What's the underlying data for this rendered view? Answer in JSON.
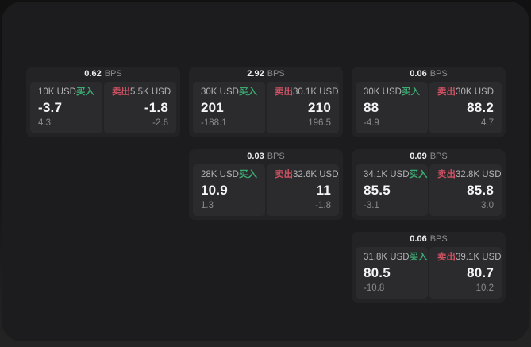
{
  "labels": {
    "bps_unit": "BPS",
    "buy": "买入",
    "sell": "卖出"
  },
  "colors": {
    "buy_green": "#3cab72",
    "sell_red": "#cd5162",
    "panel_bg": "#1c1c1e",
    "card_bg": "#232326",
    "pane_bg": "#2b2b2e"
  },
  "cards": [
    {
      "bps": "0.62",
      "buy": {
        "amount": "10K USD",
        "value": "-3.7",
        "delta": "4.3"
      },
      "sell": {
        "amount": "5.5K USD",
        "value": "-1.8",
        "delta": "-2.6"
      }
    },
    {
      "bps": "2.92",
      "buy": {
        "amount": "30K USD",
        "value": "201",
        "delta": "-188.1"
      },
      "sell": {
        "amount": "30.1K USD",
        "value": "210",
        "delta": "196.5"
      }
    },
    {
      "bps": "0.06",
      "buy": {
        "amount": "30K USD",
        "value": "88",
        "delta": "-4.9"
      },
      "sell": {
        "amount": "30K USD",
        "value": "88.2",
        "delta": "4.7"
      }
    },
    {
      "bps": "0.03",
      "buy": {
        "amount": "28K USD",
        "value": "10.9",
        "delta": "1.3"
      },
      "sell": {
        "amount": "32.6K USD",
        "value": "11",
        "delta": "-1.8"
      }
    },
    {
      "bps": "0.09",
      "buy": {
        "amount": "34.1K USD",
        "value": "85.5",
        "delta": "-3.1"
      },
      "sell": {
        "amount": "32.8K USD",
        "value": "85.8",
        "delta": "3.0"
      }
    },
    {
      "bps": "0.06",
      "buy": {
        "amount": "31.8K USD",
        "value": "80.5",
        "delta": "-10.8"
      },
      "sell": {
        "amount": "39.1K USD",
        "value": "80.7",
        "delta": "10.2"
      }
    }
  ]
}
